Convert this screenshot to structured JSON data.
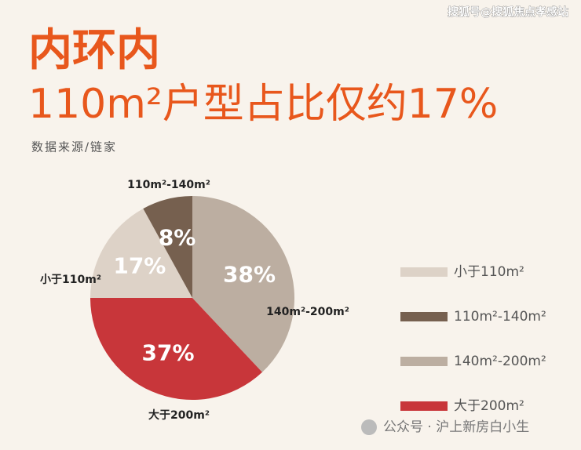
{
  "watermark": "搜狐号@搜狐焦点孝感站",
  "footer": "公众号 · 沪上新房白小生",
  "chart_data": {
    "type": "pie",
    "title": "内环内",
    "subtitle": "110m²户型占比仅约17%",
    "source": "数据来源/链家",
    "categories": [
      "小于110m²",
      "110m²-140m²",
      "140m²-200m²",
      "大于200m²"
    ],
    "values": [
      17,
      8,
      38,
      37
    ],
    "value_labels": [
      "17%",
      "8%",
      "38%",
      "37%"
    ],
    "colors": [
      "#ddd2c7",
      "#76604f",
      "#bcaea1",
      "#c8363a"
    ],
    "legend": "right"
  }
}
